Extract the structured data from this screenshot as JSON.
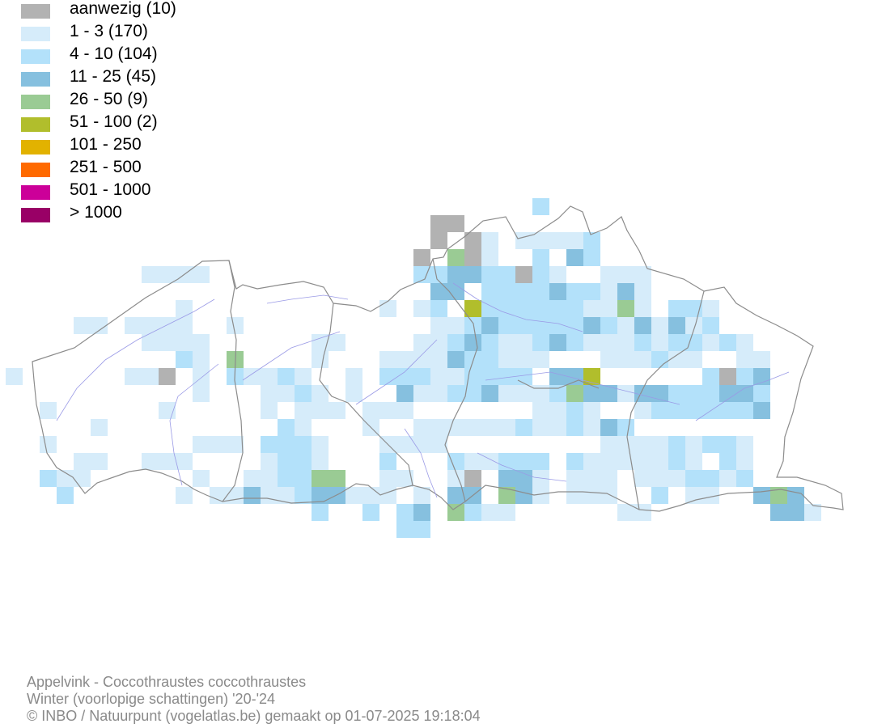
{
  "legend": [
    {
      "label": "aanwezig (10)",
      "color": "#b2b2b2"
    },
    {
      "label": "1 - 3 (170)",
      "color": "#d6ecfa"
    },
    {
      "label": "4 - 10 (104)",
      "color": "#b3e1fa"
    },
    {
      "label": "11 - 25 (45)",
      "color": "#86c0df"
    },
    {
      "label": "26 - 50 (9)",
      "color": "#9acb94"
    },
    {
      "label": "51 - 100 (2)",
      "color": "#b1be2c"
    },
    {
      "label": "101 - 250",
      "color": "#e2b200"
    },
    {
      "label": "251 - 500",
      "color": "#ff6a00"
    },
    {
      "label": "501 - 1000",
      "color": "#cc0099"
    },
    {
      "label": "> 1000",
      "color": "#990066"
    }
  ],
  "credits": {
    "species": "Appelvink - Coccothraustes coccothraustes",
    "period": "Winter (voorlopige schattingen) '20-'24",
    "copyright": "© INBO / Natuurpunt (vogelatlas.be) gemaakt op 01-07-2025 19:18:04"
  },
  "colors": {
    "border": "#8c8c8c",
    "river": "#9a9ae6"
  }
}
